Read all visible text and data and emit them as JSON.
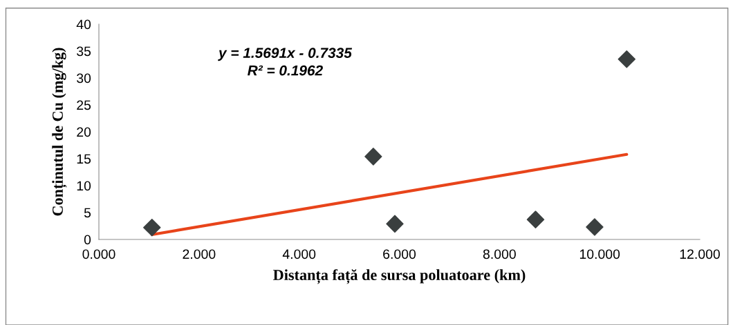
{
  "chart_data": {
    "type": "scatter",
    "xlabel": "Distanța față de sursa poluatoare (km)",
    "ylabel": "Conținutul de Cu (mg/kg)",
    "x": [
      1.06,
      5.48,
      5.91,
      8.72,
      9.9,
      10.54
    ],
    "series": [
      {
        "color": "#3a3f3f",
        "marker": "diamond",
        "values": [
          2.2,
          15.4,
          2.9,
          3.7,
          2.3,
          33.5
        ]
      },
      {
        "type": "line",
        "x": [
          1.06,
          10.54
        ],
        "values": [
          0.9,
          15.8
        ],
        "color": "#e8441a"
      }
    ],
    "annotations": [
      "y = 1.5691x - 0.7335\nR² = 0.1962"
    ],
    "xlim": [
      0,
      12
    ],
    "xticks": [
      {
        "value": 0,
        "label": "0.000"
      },
      {
        "value": 2,
        "label": "2.000"
      },
      {
        "value": 4,
        "label": "4.000"
      },
      {
        "value": 6,
        "label": "6.000"
      },
      {
        "value": 8,
        "label": "8.000"
      },
      {
        "value": 10,
        "label": "10.000"
      },
      {
        "value": 12,
        "label": "12.000"
      }
    ],
    "ylim": [
      0,
      40
    ],
    "yticks": [
      0,
      5,
      10,
      15,
      20,
      25,
      30,
      35,
      40
    ],
    "grid": false,
    "legend": false
  }
}
